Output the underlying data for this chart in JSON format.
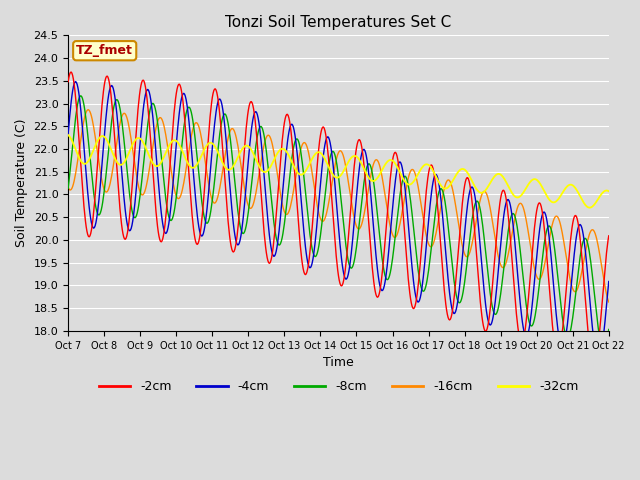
{
  "title": "Tonzi Soil Temperatures Set C",
  "xlabel": "Time",
  "ylabel": "Soil Temperature (C)",
  "ylim": [
    18.0,
    24.5
  ],
  "xlim": [
    0,
    360
  ],
  "background_color": "#dcdcdc",
  "plot_bg_color": "#dcdcdc",
  "annotation_text": "TZ_fmet",
  "annotation_bg": "#ffffcc",
  "annotation_border": "#cc8800",
  "annotation_fg": "#aa0000",
  "series_colors": {
    "-2cm": "#ff0000",
    "-4cm": "#0000cc",
    "-8cm": "#00aa00",
    "-16cm": "#ff8800",
    "-32cm": "#ffff00"
  },
  "xtick_labels": [
    "Oct 7",
    "Oct 8",
    "Oct 9",
    "Oct 10",
    "Oct 11",
    "Oct 12",
    "Oct 13",
    "Oct 14",
    "Oct 15",
    "Oct 16",
    "Oct 17",
    "Oct 18",
    "Oct 19",
    "Oct 20",
    "Oct 21",
    "Oct 22"
  ],
  "xtick_positions": [
    0,
    24,
    48,
    72,
    96,
    120,
    144,
    168,
    192,
    216,
    240,
    264,
    288,
    312,
    336,
    360
  ],
  "ytick_labels": [
    "18.0",
    "18.5",
    "19.0",
    "19.5",
    "20.0",
    "20.5",
    "21.0",
    "21.5",
    "22.0",
    "22.5",
    "23.0",
    "23.5",
    "24.0",
    "24.5"
  ],
  "ytick_values": [
    18.0,
    18.5,
    19.0,
    19.5,
    20.0,
    20.5,
    21.0,
    21.5,
    22.0,
    22.5,
    23.0,
    23.5,
    24.0,
    24.5
  ],
  "grid_color": "#ffffff",
  "legend_labels": [
    "-2cm",
    "-4cm",
    "-8cm",
    "-16cm",
    "-32cm"
  ]
}
